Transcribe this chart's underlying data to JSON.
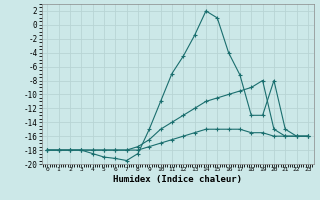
{
  "background_color": "#cce8e8",
  "grid_color": "#b8d4d4",
  "line_color": "#1a6e6e",
  "xlabel": "Humidex (Indice chaleur)",
  "xlim": [
    -0.5,
    23.5
  ],
  "ylim": [
    -20,
    3
  ],
  "xticks": [
    0,
    1,
    2,
    3,
    4,
    5,
    6,
    7,
    8,
    9,
    10,
    11,
    12,
    13,
    14,
    15,
    16,
    17,
    18,
    19,
    20,
    21,
    22,
    23
  ],
  "yticks": [
    2,
    0,
    -2,
    -4,
    -6,
    -8,
    -10,
    -12,
    -14,
    -16,
    -18,
    -20
  ],
  "series": [
    {
      "x": [
        0,
        1,
        2,
        3,
        4,
        5,
        6,
        7,
        8,
        9,
        10,
        11,
        12,
        13,
        14,
        15,
        16,
        17,
        18,
        19,
        20,
        21,
        22,
        23
      ],
      "y": [
        -18,
        -18,
        -18,
        -18,
        -18.5,
        -19,
        -19.2,
        -19.5,
        -18.5,
        -15,
        -11,
        -7,
        -4.5,
        -1.5,
        2,
        1,
        -4,
        -7.2,
        -13,
        -13,
        -8,
        -15,
        -16,
        -16
      ]
    },
    {
      "x": [
        0,
        1,
        2,
        3,
        4,
        5,
        6,
        7,
        8,
        9,
        10,
        11,
        12,
        13,
        14,
        15,
        16,
        17,
        18,
        19,
        20,
        21,
        22,
        23
      ],
      "y": [
        -18,
        -18,
        -18,
        -18,
        -18,
        -18,
        -18,
        -18,
        -17.5,
        -16.5,
        -15,
        -14,
        -13,
        -12,
        -11,
        -10.5,
        -10,
        -9.5,
        -9,
        -8,
        -15,
        -16,
        -16,
        -16
      ]
    },
    {
      "x": [
        0,
        1,
        2,
        3,
        4,
        5,
        6,
        7,
        8,
        9,
        10,
        11,
        12,
        13,
        14,
        15,
        16,
        17,
        18,
        19,
        20,
        21,
        22,
        23
      ],
      "y": [
        -18,
        -18,
        -18,
        -18,
        -18,
        -18,
        -18,
        -18,
        -18,
        -17.5,
        -17,
        -16.5,
        -16,
        -15.5,
        -15,
        -15,
        -15,
        -15,
        -15.5,
        -15.5,
        -16,
        -16,
        -16,
        -16
      ]
    }
  ]
}
